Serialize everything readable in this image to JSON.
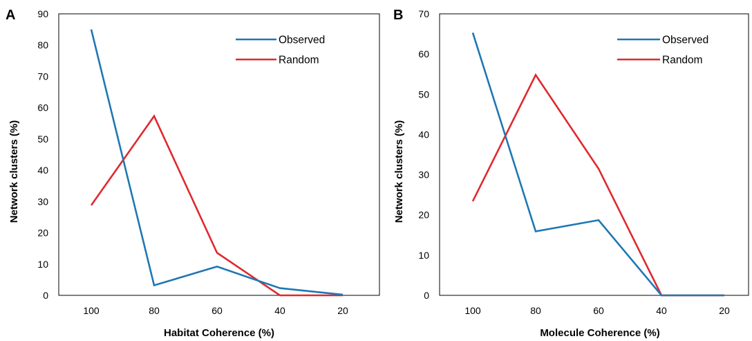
{
  "chart_data": [
    {
      "type": "line",
      "panel_label": "A",
      "xlabel": "Habitat Coherence (%)",
      "ylabel": "Network clusters (%)",
      "categories": [
        "100",
        "80",
        "60",
        "40",
        "20"
      ],
      "ylim": [
        0,
        90
      ],
      "yticks": [
        0,
        10,
        20,
        30,
        40,
        50,
        60,
        70,
        80,
        90
      ],
      "legend_position": "top-right",
      "series": [
        {
          "name": "Observed",
          "color": "#1f77b4",
          "values": [
            85,
            3.2,
            9.2,
            2.3,
            0.2
          ]
        },
        {
          "name": "Random",
          "color": "#e0282e",
          "values": [
            28.8,
            57.3,
            13.6,
            0,
            0
          ]
        }
      ]
    },
    {
      "type": "line",
      "panel_label": "B",
      "xlabel": "Molecule Coherence (%)",
      "ylabel": "Network clusters (%)",
      "categories": [
        "100",
        "80",
        "60",
        "40",
        "20"
      ],
      "ylim": [
        0,
        70
      ],
      "yticks": [
        0,
        10,
        20,
        30,
        40,
        50,
        60,
        70
      ],
      "legend_position": "top-right",
      "series": [
        {
          "name": "Observed",
          "color": "#1f77b4",
          "values": [
            65.3,
            15.9,
            18.7,
            0,
            0
          ]
        },
        {
          "name": "Random",
          "color": "#e0282e",
          "values": [
            23.4,
            54.8,
            31.5,
            0,
            0
          ]
        }
      ]
    }
  ]
}
